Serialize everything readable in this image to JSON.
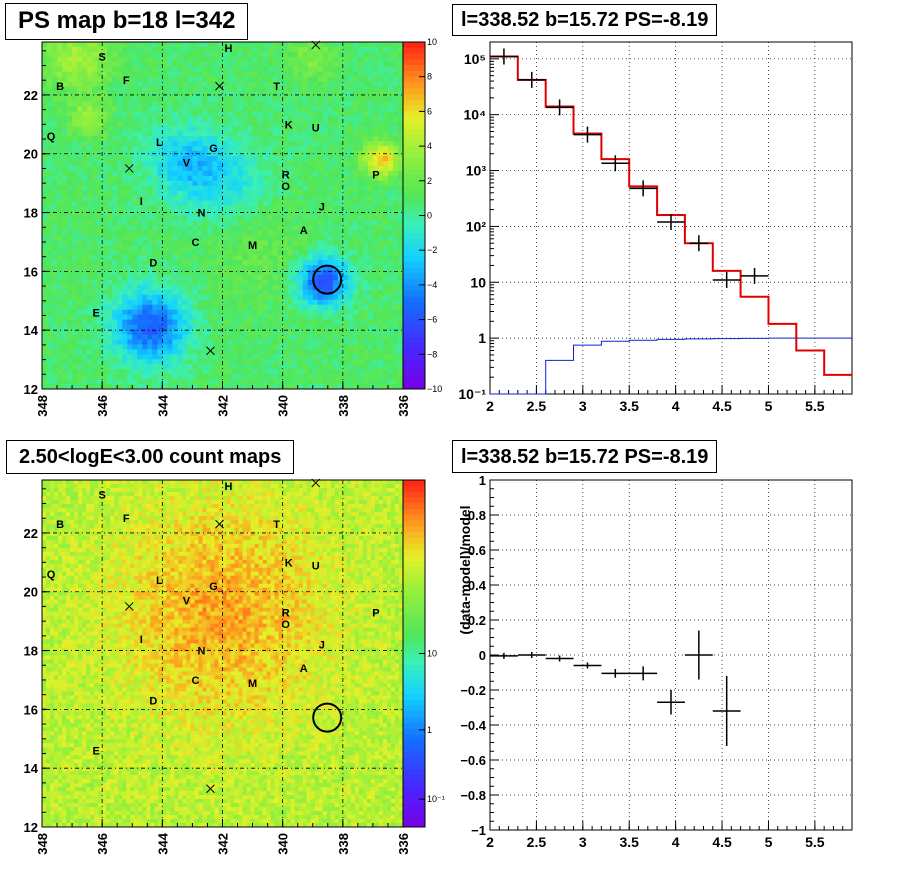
{
  "titles": {
    "ps_map": "PS map b=18 l=342",
    "spectrum": "l=338.52 b=15.72 PS=-8.19",
    "count_map": "2.50<logE<3.00 count maps",
    "residual": "l=338.52 b=15.72 PS=-8.19"
  },
  "chart_data": [
    {
      "id": "ps_map",
      "type": "heatmap",
      "title": "PS map b=18 l=342",
      "x_ticks": [
        "348",
        "346",
        "344",
        "342",
        "340",
        "338",
        "336"
      ],
      "x_range": [
        348,
        336
      ],
      "y_ticks": [
        "12",
        "14",
        "16",
        "18",
        "20",
        "22"
      ],
      "y_range": [
        12,
        23.8
      ],
      "colorbar_ticks": [
        "10",
        "8",
        "6",
        "4",
        "2",
        "0",
        "−2",
        "−4",
        "−6",
        "−8",
        "−10"
      ],
      "colorbar_range": [
        -10,
        10
      ],
      "grid": true,
      "source_labels": [
        {
          "label": "S",
          "l": 346.0,
          "b": 23.3
        },
        {
          "label": "H",
          "l": 341.8,
          "b": 23.6
        },
        {
          "label": "B",
          "l": 347.4,
          "b": 22.3
        },
        {
          "label": "F",
          "l": 345.2,
          "b": 22.5
        },
        {
          "label": "T",
          "l": 340.2,
          "b": 22.3
        },
        {
          "label": "K",
          "l": 339.8,
          "b": 21.0
        },
        {
          "label": "U",
          "l": 338.9,
          "b": 20.9
        },
        {
          "label": "Q",
          "l": 347.7,
          "b": 20.6
        },
        {
          "label": "L",
          "l": 344.1,
          "b": 20.4
        },
        {
          "label": "G",
          "l": 342.3,
          "b": 20.2
        },
        {
          "label": "V",
          "l": 343.2,
          "b": 19.7
        },
        {
          "label": "R",
          "l": 339.9,
          "b": 19.3
        },
        {
          "label": "O",
          "l": 339.9,
          "b": 18.9
        },
        {
          "label": "P",
          "l": 336.9,
          "b": 19.3
        },
        {
          "label": "I",
          "l": 344.7,
          "b": 18.4
        },
        {
          "label": "J",
          "l": 338.7,
          "b": 18.2
        },
        {
          "label": "N",
          "l": 342.7,
          "b": 18.0
        },
        {
          "label": "A",
          "l": 339.3,
          "b": 17.4
        },
        {
          "label": "C",
          "l": 342.9,
          "b": 17.0
        },
        {
          "label": "M",
          "l": 341.0,
          "b": 16.9
        },
        {
          "label": "D",
          "l": 344.3,
          "b": 16.3
        },
        {
          "label": "E",
          "l": 346.2,
          "b": 14.6
        }
      ],
      "cross_markers": [
        {
          "l": 338.9,
          "b": 23.7
        },
        {
          "l": 342.1,
          "b": 22.3
        },
        {
          "l": 345.1,
          "b": 19.5
        },
        {
          "l": 342.4,
          "b": 13.3
        }
      ],
      "circle": {
        "l": 338.52,
        "b": 15.72
      }
    },
    {
      "id": "spectrum",
      "type": "line",
      "title": "l=338.52 b=15.72 PS=-8.19",
      "xlim": [
        2.0,
        5.9
      ],
      "ylim": [
        0.1,
        200000
      ],
      "y_scale": "log",
      "grid": true,
      "x_ticks": [
        "2",
        "2.5",
        "3",
        "3.5",
        "4",
        "4.5",
        "5",
        "5.5"
      ],
      "y_ticks": [
        "10⁻¹",
        "1",
        "10",
        "10²",
        "10³",
        "10⁴",
        "10⁵"
      ],
      "bin_edges": [
        2.0,
        2.3,
        2.6,
        2.9,
        3.2,
        3.5,
        3.8,
        4.1,
        4.4,
        4.7,
        5.0,
        5.3,
        5.6,
        5.9
      ],
      "model_total": [
        110000,
        42000,
        14000,
        4600,
        1600,
        520,
        160,
        50,
        16,
        5.5,
        1.8,
        0.6,
        0.22
      ],
      "model_ps": [
        0.1,
        0.1,
        0.4,
        0.75,
        0.88,
        0.92,
        0.95,
        0.97,
        0.98,
        0.99,
        1.0,
        1.0,
        1.0
      ],
      "data_points": [
        {
          "x": 2.15,
          "y": 110000,
          "xerr": 0.15
        },
        {
          "x": 2.45,
          "y": 42000,
          "xerr": 0.15
        },
        {
          "x": 2.75,
          "y": 13500,
          "xerr": 0.15
        },
        {
          "x": 3.05,
          "y": 4400,
          "xerr": 0.15
        },
        {
          "x": 3.35,
          "y": 1350,
          "xerr": 0.15
        },
        {
          "x": 3.65,
          "y": 480,
          "xerr": 0.15
        },
        {
          "x": 3.95,
          "y": 120,
          "xerr": 0.15
        },
        {
          "x": 4.25,
          "y": 50,
          "xerr": 0.1
        },
        {
          "x": 4.55,
          "y": 11,
          "xerr": 0.15
        },
        {
          "x": 4.85,
          "y": 13,
          "xerr": 0.15
        }
      ]
    },
    {
      "id": "count_map",
      "type": "heatmap",
      "title": "2.50<logE<3.00 count maps",
      "x_ticks": [
        "348",
        "346",
        "344",
        "342",
        "340",
        "338",
        "336"
      ],
      "x_range": [
        348,
        336
      ],
      "y_ticks": [
        "12",
        "14",
        "16",
        "18",
        "20",
        "22"
      ],
      "y_range": [
        12,
        23.8
      ],
      "colorbar_ticks": [
        "10",
        "1",
        "10⁻¹"
      ],
      "colorbar_scale": "log",
      "grid": true
    },
    {
      "id": "residual",
      "type": "scatter",
      "title": "l=338.52 b=15.72 PS=-8.19",
      "ylabel": "(data-model)/model",
      "xlim": [
        2.0,
        5.9
      ],
      "ylim": [
        -1,
        1
      ],
      "grid": true,
      "x_ticks": [
        "2",
        "2.5",
        "3",
        "3.5",
        "4",
        "4.5",
        "5",
        "5.5"
      ],
      "y_ticks": [
        "−1",
        "−0.8",
        "−0.6",
        "−0.4",
        "−0.2",
        "0",
        "0.2",
        "0.4",
        "0.6",
        "0.8",
        "1"
      ],
      "points": [
        {
          "x": 2.15,
          "y": -0.005,
          "xerr": 0.15,
          "yerr": 0.005
        },
        {
          "x": 2.45,
          "y": 0.0,
          "xerr": 0.15,
          "yerr": 0.008
        },
        {
          "x": 2.75,
          "y": -0.02,
          "xerr": 0.15,
          "yerr": 0.01
        },
        {
          "x": 3.05,
          "y": -0.06,
          "xerr": 0.15,
          "yerr": 0.015
        },
        {
          "x": 3.35,
          "y": -0.105,
          "xerr": 0.15,
          "yerr": 0.025
        },
        {
          "x": 3.65,
          "y": -0.105,
          "xerr": 0.15,
          "yerr": 0.04
        },
        {
          "x": 3.95,
          "y": -0.27,
          "xerr": 0.15,
          "yerr": 0.07
        },
        {
          "x": 4.25,
          "y": 0.0,
          "xerr": 0.15,
          "yerr": 0.14
        },
        {
          "x": 4.55,
          "y": -0.32,
          "xerr": 0.15,
          "yerr": 0.2
        }
      ]
    }
  ]
}
